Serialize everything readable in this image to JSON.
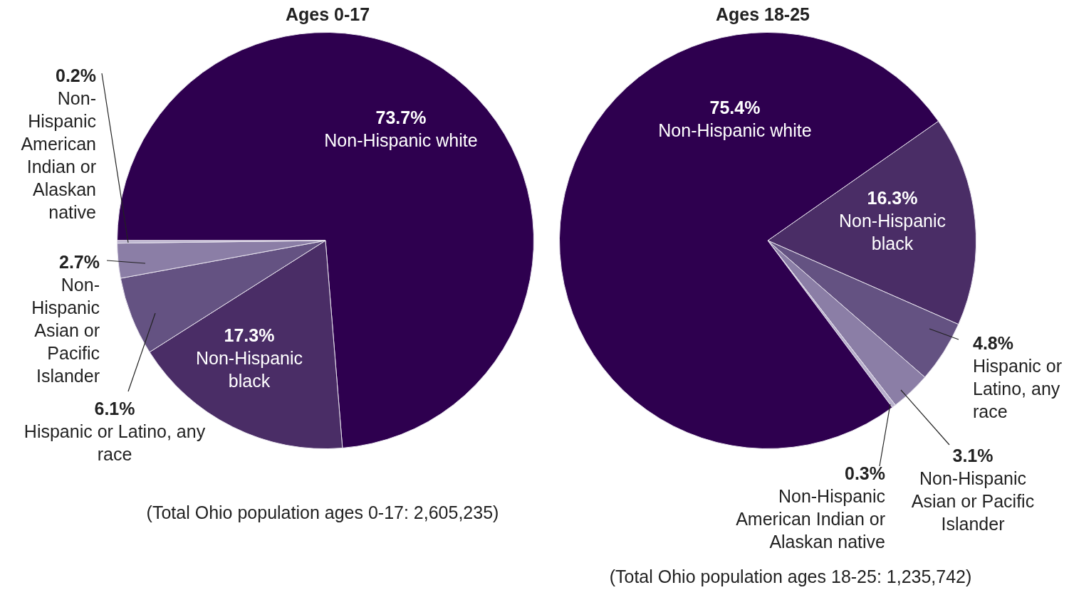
{
  "chart_data": [
    {
      "type": "pie",
      "title": "Ages 0-17",
      "categories": [
        "Non-Hispanic white",
        "Non-Hispanic black",
        "Hispanic or Latino, any race",
        "Non-Hispanic Asian or Pacific Islander",
        "Non-Hispanic American Indian or Alaskan native"
      ],
      "values": [
        73.7,
        17.3,
        6.1,
        2.7,
        0.2
      ],
      "value_labels": [
        "73.7%",
        "17.3%",
        "6.1%",
        "2.7%",
        "0.2%"
      ],
      "colors": [
        "#2e004f",
        "#4a2d66",
        "#645282",
        "#8b7ea6",
        "#b8b0cc"
      ],
      "legend": false,
      "annotations": [
        "(Total Ohio population ages 0-17: 2,605,235)"
      ]
    },
    {
      "type": "pie",
      "title": "Ages 18-25",
      "categories": [
        "Non-Hispanic black",
        "Hispanic or Latino, any race",
        "Non-Hispanic Asian or Pacific Islander",
        "Non-Hispanic American Indian or Alaskan native",
        "Non-Hispanic white"
      ],
      "values": [
        16.3,
        4.8,
        3.1,
        0.3,
        75.4
      ],
      "value_labels": [
        "16.3%",
        "4.8%",
        "3.1%",
        "0.3%",
        "75.4%"
      ],
      "colors": [
        "#4a2d66",
        "#645282",
        "#8b7ea6",
        "#b8b0cc",
        "#2e004f"
      ],
      "legend": false,
      "annotations": [
        "(Total Ohio population ages 18-25: 1,235,742)"
      ]
    }
  ]
}
